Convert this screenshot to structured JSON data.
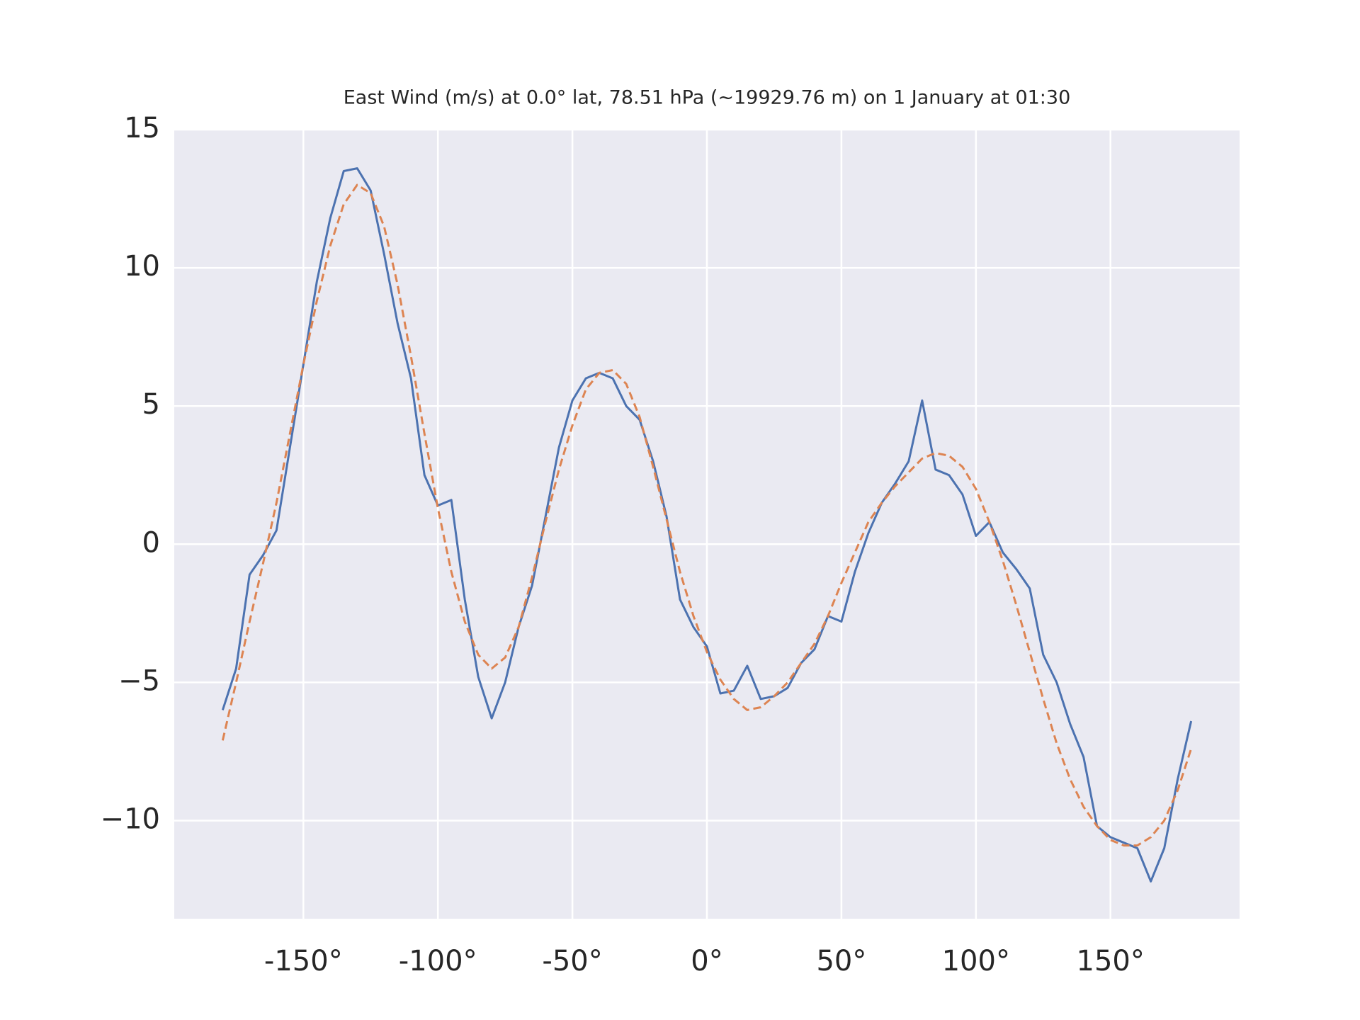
{
  "chart_data": {
    "type": "line",
    "title": "East Wind (m/s) at 0.0° lat, 78.51 hPa (~19929.76 m) on 1 January at 01:30",
    "x": [
      -180,
      -175,
      -170,
      -165,
      -160,
      -155,
      -150,
      -145,
      -140,
      -135,
      -130,
      -125,
      -120,
      -115,
      -110,
      -105,
      -100,
      -95,
      -90,
      -85,
      -80,
      -75,
      -70,
      -65,
      -60,
      -55,
      -50,
      -45,
      -40,
      -35,
      -30,
      -25,
      -20,
      -15,
      -10,
      -5,
      0,
      5,
      10,
      15,
      20,
      25,
      30,
      35,
      40,
      45,
      50,
      55,
      60,
      65,
      70,
      75,
      80,
      85,
      90,
      95,
      100,
      105,
      110,
      115,
      120,
      125,
      130,
      135,
      140,
      145,
      150,
      155,
      160,
      165,
      170,
      175,
      180
    ],
    "series": [
      {
        "color": "#4c72b0",
        "dashed": false,
        "values": [
          -6.0,
          -4.5,
          -1.1,
          -0.4,
          0.5,
          3.5,
          6.5,
          9.5,
          11.8,
          13.5,
          13.6,
          12.8,
          10.5,
          8.0,
          6.0,
          2.5,
          1.4,
          1.6,
          -2.0,
          -4.8,
          -6.3,
          -5.0,
          -3.0,
          -1.5,
          1.0,
          3.5,
          5.2,
          6.0,
          6.2,
          6.0,
          5.0,
          4.5,
          3.0,
          1.0,
          -2.0,
          -3.0,
          -3.7,
          -5.4,
          -5.3,
          -4.4,
          -5.6,
          -5.5,
          -5.2,
          -4.3,
          -3.8,
          -2.6,
          -2.8,
          -1.0,
          0.4,
          1.5,
          2.2,
          3.0,
          5.2,
          2.7,
          2.5,
          1.8,
          0.3,
          0.8,
          -0.3,
          -0.9,
          -1.6,
          -4.0,
          -5.0,
          -6.5,
          -7.7,
          -10.2,
          -10.6,
          -10.8,
          -11.0,
          -12.2,
          -11.0,
          -8.5,
          -6.4
        ]
      },
      {
        "color": "#dd8452",
        "dashed": true,
        "values": [
          -7.1,
          -5.0,
          -2.8,
          -0.7,
          1.5,
          4.0,
          6.5,
          8.8,
          10.8,
          12.3,
          13.0,
          12.7,
          11.5,
          9.4,
          6.8,
          4.0,
          1.3,
          -1.0,
          -2.8,
          -4.0,
          -4.5,
          -4.1,
          -3.0,
          -1.2,
          0.8,
          2.7,
          4.3,
          5.6,
          6.2,
          6.3,
          5.8,
          4.6,
          2.8,
          0.9,
          -1.0,
          -2.6,
          -3.9,
          -4.9,
          -5.6,
          -6.0,
          -5.9,
          -5.5,
          -5.0,
          -4.3,
          -3.6,
          -2.6,
          -1.4,
          -0.3,
          0.8,
          1.5,
          2.1,
          2.6,
          3.1,
          3.3,
          3.2,
          2.8,
          2.0,
          0.8,
          -0.6,
          -2.2,
          -3.9,
          -5.6,
          -7.2,
          -8.5,
          -9.5,
          -10.2,
          -10.7,
          -10.9,
          -10.9,
          -10.6,
          -10.0,
          -8.9,
          -7.4
        ]
      }
    ],
    "xlim": [
      -198,
      198
    ],
    "ylim": [
      -13.55,
      15
    ],
    "xticks": [
      {
        "value": -150,
        "label": "-150°"
      },
      {
        "value": -100,
        "label": "-100°"
      },
      {
        "value": -50,
        "label": "-50°"
      },
      {
        "value": 0,
        "label": "0°"
      },
      {
        "value": 50,
        "label": "50°"
      },
      {
        "value": 100,
        "label": "100°"
      },
      {
        "value": 150,
        "label": "150°"
      }
    ],
    "yticks": [
      {
        "value": -10,
        "label": "−10"
      },
      {
        "value": -5,
        "label": "−5"
      },
      0,
      5,
      10,
      15
    ],
    "grid": true
  }
}
